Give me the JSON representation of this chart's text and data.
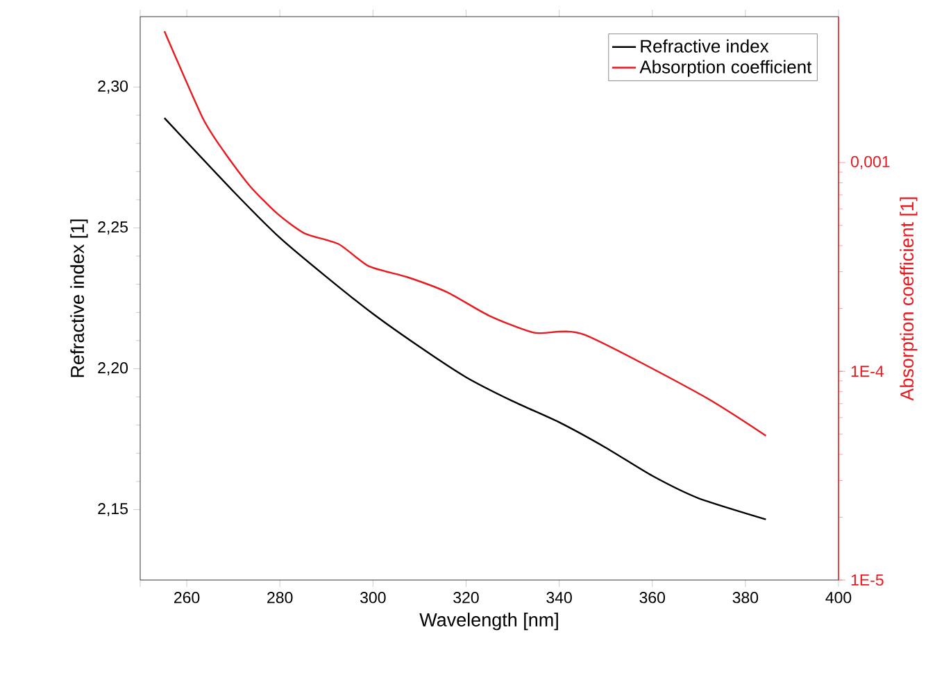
{
  "chart_data": {
    "type": "line",
    "xlabel": "Wavelength [nm]",
    "ylabel": "Refractive index [1]",
    "y2label": "Absorption coefficient [1]",
    "xlim": [
      250,
      400
    ],
    "xticks": [
      {
        "value": 250,
        "label": null
      },
      260,
      280,
      300,
      320,
      340,
      360,
      380,
      400
    ],
    "ylim": [
      2.125,
      2.325
    ],
    "yticks": [
      {
        "value": 2.15,
        "label": "2,15"
      },
      {
        "value": 2.2,
        "label": "2,20"
      },
      {
        "value": 2.25,
        "label": "2,25"
      },
      {
        "value": 2.3,
        "label": "2,30"
      }
    ],
    "y2lim": [
      1e-05,
      0.005
    ],
    "y2ticks": [
      {
        "value": 1e-05,
        "label": "1E-5"
      },
      {
        "value": 0.0001,
        "label": "1E-4"
      },
      {
        "value": 0.001,
        "label": "0,001"
      }
    ],
    "log": "y2",
    "legend": "top right",
    "grid": false,
    "marker": "none",
    "line_style": "solid",
    "series": [
      {
        "name": "Refractive index",
        "color": "#000000",
        "x": [
          255.2,
          270,
          280,
          290,
          300,
          310,
          320,
          330,
          340,
          350,
          360,
          370,
          384.4
        ],
        "values": [
          2.289,
          2.263,
          2.2465,
          2.2326,
          2.2195,
          2.2078,
          2.197,
          2.1885,
          2.181,
          2.172,
          2.162,
          2.154,
          2.1465
        ]
      },
      {
        "name": "Absorption coefficient",
        "color": "#e8191f",
        "axis": "y2",
        "x": [
          255.2,
          263.4,
          268.1,
          273.6,
          279.5,
          285.3,
          292.6,
          299.1,
          307.3,
          316.0,
          324.9,
          334.7,
          345.3,
          370.6,
          384.4
        ],
        "values": [
          0.00426,
          0.00164,
          0.00112,
          0.00077,
          0.000568,
          0.000458,
          0.000407,
          0.000319,
          0.000283,
          0.000239,
          0.000185,
          0.000153,
          0.00015,
          7.69e-05,
          4.91e-05
        ]
      }
    ]
  }
}
